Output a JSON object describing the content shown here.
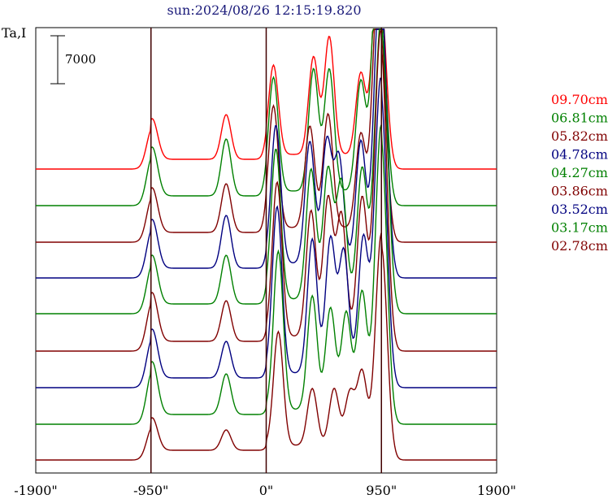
{
  "chart_data": {
    "type": "line",
    "title": "sun:2024/08/26 12:15:19.820",
    "ylabel": "Ta,I",
    "scale_bar_label": "7000",
    "xlim": [
      -1900,
      1900
    ],
    "x_ticks": [
      -1900,
      -950,
      0,
      950,
      1900
    ],
    "x_tick_labels": [
      "-1900\"",
      "-950\"",
      "0\"",
      "950\"",
      "1900\""
    ],
    "vertical_lines": [
      -950,
      0,
      950
    ],
    "series": [
      {
        "name": "09.70cm",
        "color": "#ff0000",
        "baseline": 208,
        "peaks": [
          [
            -940,
            50
          ],
          [
            -330,
            55
          ],
          [
            60,
            110
          ],
          [
            390,
            120
          ],
          [
            520,
            145
          ],
          [
            780,
            100
          ],
          [
            900,
            115
          ],
          [
            950,
            175
          ]
        ]
      },
      {
        "name": "06.81cm",
        "color": "#008000",
        "baseline": 253,
        "peaks": [
          [
            -940,
            60
          ],
          [
            -330,
            70
          ],
          [
            60,
            140
          ],
          [
            390,
            150
          ],
          [
            520,
            150
          ],
          [
            780,
            135
          ],
          [
            900,
            165
          ],
          [
            950,
            195
          ]
        ]
      },
      {
        "name": "05.82cm",
        "color": "#800000",
        "baseline": 298,
        "peaks": [
          [
            -940,
            55
          ],
          [
            -330,
            60
          ],
          [
            60,
            150
          ],
          [
            360,
            125
          ],
          [
            510,
            140
          ],
          [
            780,
            115
          ],
          [
            900,
            155
          ],
          [
            950,
            205
          ]
        ]
      },
      {
        "name": "04.78cm",
        "color": "#000080",
        "baseline": 342,
        "peaks": [
          [
            -940,
            60
          ],
          [
            -330,
            65
          ],
          [
            80,
            170
          ],
          [
            360,
            150
          ],
          [
            500,
            150
          ],
          [
            600,
            130
          ],
          [
            780,
            150
          ],
          [
            920,
            185
          ],
          [
            960,
            220
          ]
        ]
      },
      {
        "name": "04.27cm",
        "color": "#008000",
        "baseline": 386,
        "peaks": [
          [
            -940,
            60
          ],
          [
            -330,
            60
          ],
          [
            80,
            185
          ],
          [
            370,
            160
          ],
          [
            510,
            160
          ],
          [
            620,
            145
          ],
          [
            790,
            160
          ],
          [
            920,
            180
          ],
          [
            970,
            225
          ]
        ]
      },
      {
        "name": "03.86cm",
        "color": "#800000",
        "baseline": 432,
        "peaks": [
          [
            -940,
            60
          ],
          [
            -330,
            50
          ],
          [
            90,
            190
          ],
          [
            370,
            155
          ],
          [
            510,
            170
          ],
          [
            620,
            150
          ],
          [
            790,
            170
          ],
          [
            920,
            175
          ],
          [
            960,
            240
          ]
        ]
      },
      {
        "name": "03.52cm",
        "color": "#000080",
        "baseline": 477,
        "peaks": [
          [
            -940,
            60
          ],
          [
            -330,
            45
          ],
          [
            90,
            205
          ],
          [
            380,
            165
          ],
          [
            530,
            165
          ],
          [
            640,
            150
          ],
          [
            800,
            165
          ],
          [
            920,
            165
          ],
          [
            960,
            235
          ]
        ]
      },
      {
        "name": "03.17cm",
        "color": "#008000",
        "baseline": 522,
        "peaks": [
          [
            -940,
            65
          ],
          [
            -330,
            50
          ],
          [
            100,
            195
          ],
          [
            380,
            140
          ],
          [
            530,
            125
          ],
          [
            660,
            120
          ],
          [
            790,
            145
          ],
          [
            930,
            160
          ],
          [
            960,
            210
          ]
        ]
      },
      {
        "name": "02.78cm",
        "color": "#800000",
        "baseline": 566,
        "peaks": [
          [
            -940,
            40
          ],
          [
            -330,
            25
          ],
          [
            100,
            140
          ],
          [
            380,
            70
          ],
          [
            560,
            70
          ],
          [
            690,
            65
          ],
          [
            790,
            90
          ],
          [
            930,
            95
          ],
          [
            960,
            180
          ]
        ]
      }
    ]
  }
}
